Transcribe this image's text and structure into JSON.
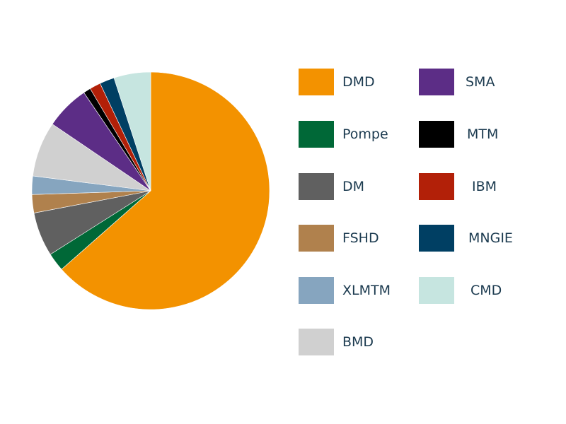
{
  "chart_data": {
    "type": "pie",
    "title": "",
    "start_angle_deg": 0,
    "direction": "clockwise",
    "legend_position": "right",
    "slices": [
      {
        "label": "DMD",
        "value": 63.5,
        "color": "#F39200"
      },
      {
        "label": "Pompe",
        "value": 2.5,
        "color": "#006837"
      },
      {
        "label": "DM",
        "value": 6.0,
        "color": "#606060"
      },
      {
        "label": "FSHD",
        "value": 2.5,
        "color": "#B0814D"
      },
      {
        "label": "XLMTM",
        "value": 2.5,
        "color": "#86A5BF"
      },
      {
        "label": "BMD",
        "value": 7.5,
        "color": "#D0D0D0"
      },
      {
        "label": "SMA",
        "value": 6.0,
        "color": "#5C2D86"
      },
      {
        "label": "MTM",
        "value": 1.0,
        "color": "#000000"
      },
      {
        "label": "IBM",
        "value": 1.5,
        "color": "#B22008"
      },
      {
        "label": "MNGIE",
        "value": 2.0,
        "color": "#003F63"
      },
      {
        "label": "CMD",
        "value": 5.0,
        "color": "#C6E5E0"
      }
    ]
  },
  "legend": {
    "items": [
      {
        "label": "DMD"
      },
      {
        "label": "Pompe"
      },
      {
        "label": "DM"
      },
      {
        "label": "FSHD"
      },
      {
        "label": "XLMTM"
      },
      {
        "label": "BMD"
      },
      {
        "label": "SMA"
      },
      {
        "label": "MTM"
      },
      {
        "label": "IBM"
      },
      {
        "label": "MNGIE"
      },
      {
        "label": "CMD"
      }
    ]
  }
}
